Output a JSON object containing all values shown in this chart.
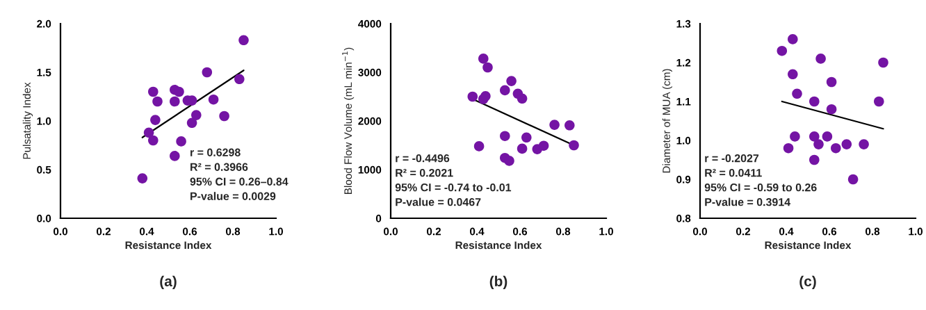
{
  "chart_data": [
    {
      "type": "scatter",
      "xlabel": "Resistance Index",
      "ylabel": "Pulsatality Index",
      "marker": "circle",
      "grid": false,
      "xlim": [
        0,
        1
      ],
      "xticks": [
        {
          "value": 0,
          "label": "0.0"
        },
        {
          "value": 0.2,
          "label": "0.2"
        },
        {
          "value": 0.4,
          "label": "0.4"
        },
        {
          "value": 0.6,
          "label": "0.6"
        },
        {
          "value": 0.8,
          "label": "0.8"
        },
        {
          "value": 1,
          "label": "1.0"
        }
      ],
      "ylim": [
        0,
        2
      ],
      "yticks": [
        {
          "value": 0,
          "label": "0.0"
        },
        {
          "value": 0.5,
          "label": "0.5"
        },
        {
          "value": 1,
          "label": "1.0"
        },
        {
          "value": 1.5,
          "label": "1.5"
        },
        {
          "value": 2,
          "label": "2.0"
        }
      ],
      "series": [
        {
          "color": "#7414a4",
          "x": [
            0.38,
            0.41,
            0.43,
            0.43,
            0.44,
            0.45,
            0.53,
            0.53,
            0.53,
            0.55,
            0.56,
            0.59,
            0.61,
            0.61,
            0.63,
            0.68,
            0.71,
            0.76,
            0.83,
            0.85
          ],
          "values": [
            0.41,
            0.88,
            1.3,
            0.8,
            1.01,
            1.2,
            1.32,
            1.2,
            0.64,
            1.3,
            0.79,
            1.21,
            1.21,
            0.98,
            1.06,
            1.5,
            1.22,
            1.05,
            1.43,
            1.83
          ]
        },
        {
          "type": "line",
          "marker": "none",
          "color": "#000000",
          "x": [
            0.38,
            0.85
          ],
          "values": [
            0.83,
            1.52
          ]
        }
      ],
      "annotations": [
        "r = 0.6298",
        "R² = 0.3966",
        "95% CI = 0.26–0.84",
        "P-value = 0.0029",
        "(a)"
      ]
    },
    {
      "type": "scatter",
      "xlabel": "Resistance Index",
      "ylabel": "Blood Flow Volume (mL min$^{−1}$)",
      "marker": "circle",
      "grid": false,
      "xlim": [
        0,
        1
      ],
      "xticks": [
        {
          "value": 0,
          "label": "0.0"
        },
        {
          "value": 0.2,
          "label": "0.2"
        },
        {
          "value": 0.4,
          "label": "0.4"
        },
        {
          "value": 0.6,
          "label": "0.6"
        },
        {
          "value": 0.8,
          "label": "0.8"
        },
        {
          "value": 1,
          "label": "1.0"
        }
      ],
      "ylim": [
        0,
        4000
      ],
      "yticks": [
        0,
        1000,
        2000,
        3000,
        4000
      ],
      "series": [
        {
          "color": "#7414a4",
          "x": [
            0.38,
            0.41,
            0.43,
            0.43,
            0.44,
            0.45,
            0.53,
            0.53,
            0.53,
            0.55,
            0.56,
            0.59,
            0.61,
            0.61,
            0.63,
            0.68,
            0.71,
            0.76,
            0.83,
            0.85
          ],
          "values": [
            2500,
            1480,
            3280,
            2450,
            2510,
            3100,
            2630,
            1690,
            1240,
            1180,
            2820,
            2560,
            2460,
            1430,
            1660,
            1420,
            1490,
            1920,
            1910,
            1500
          ]
        },
        {
          "type": "line",
          "marker": "none",
          "color": "#000000",
          "x": [
            0.38,
            0.85
          ],
          "values": [
            2450,
            1500
          ]
        }
      ],
      "annotations": [
        "r = -0.4496",
        "R² = 0.2021",
        "95% CI = -0.74 to -0.01",
        "P-value = 0.0467",
        "(b)"
      ]
    },
    {
      "type": "scatter",
      "xlabel": "Resistance Index",
      "ylabel": "Diameter of MUA (cm)",
      "marker": "circle",
      "grid": false,
      "xlim": [
        0,
        1
      ],
      "xticks": [
        {
          "value": 0,
          "label": "0.0"
        },
        {
          "value": 0.2,
          "label": "0.2"
        },
        {
          "value": 0.4,
          "label": "0.4"
        },
        {
          "value": 0.6,
          "label": "0.6"
        },
        {
          "value": 0.8,
          "label": "0.8"
        },
        {
          "value": 1,
          "label": "1.0"
        }
      ],
      "ylim": [
        0.8,
        1.3
      ],
      "yticks": [
        {
          "value": 0.8,
          "label": "0.8"
        },
        {
          "value": 0.9,
          "label": "0.9"
        },
        {
          "value": 1.0,
          "label": "1.0"
        },
        {
          "value": 1.1,
          "label": "1.1"
        },
        {
          "value": 1.2,
          "label": "1.2"
        },
        {
          "value": 1.3,
          "label": "1.3"
        }
      ],
      "series": [
        {
          "color": "#7414a4",
          "x": [
            0.38,
            0.41,
            0.43,
            0.43,
            0.44,
            0.45,
            0.53,
            0.53,
            0.53,
            0.55,
            0.56,
            0.59,
            0.61,
            0.61,
            0.63,
            0.68,
            0.71,
            0.76,
            0.83,
            0.85
          ],
          "values": [
            1.23,
            0.98,
            1.26,
            1.17,
            1.01,
            1.12,
            1.1,
            1.01,
            0.95,
            0.99,
            1.21,
            1.01,
            1.15,
            1.08,
            0.98,
            0.99,
            0.9,
            0.99,
            1.1,
            1.2
          ]
        },
        {
          "type": "line",
          "marker": "none",
          "color": "#000000",
          "x": [
            0.38,
            0.85
          ],
          "values": [
            1.1,
            1.03
          ]
        }
      ],
      "annotations": [
        "r = -0.2027",
        "R² = 0.0411",
        "95% CI = -0.59 to 0.26",
        "P-value = 0.3914",
        "(c)"
      ]
    }
  ]
}
